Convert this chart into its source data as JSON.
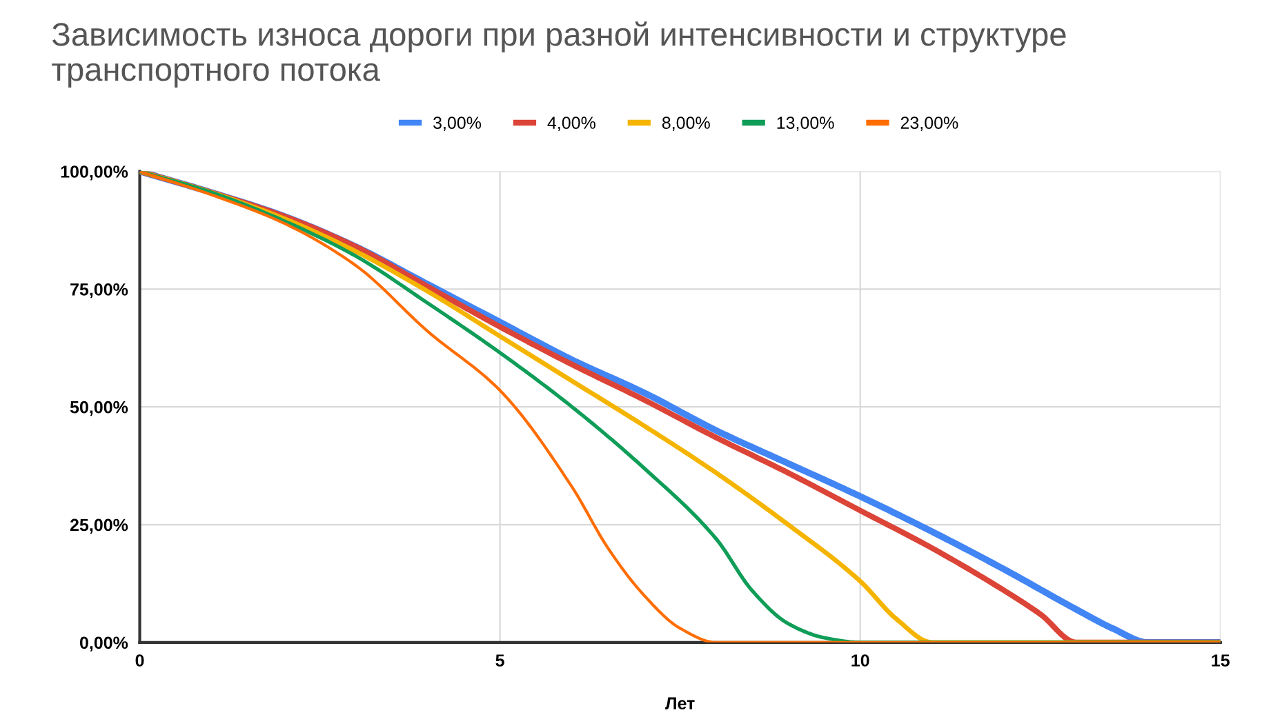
{
  "chart_data": {
    "type": "line",
    "title": "Зависимость износа дороги при разной интенсивности и структуре транспортного потока",
    "xlabel": "Лет",
    "series": [
      {
        "name": "3,00%",
        "color": "#4285f4",
        "x": [
          0,
          1,
          2,
          3,
          4,
          5,
          6,
          7,
          8,
          9,
          10,
          11,
          12,
          13,
          13.5,
          14,
          15
        ],
        "values": [
          100,
          95.5,
          90.5,
          84,
          76,
          68,
          60,
          53,
          45,
          38,
          31,
          23.5,
          15.5,
          7,
          3,
          0,
          0
        ]
      },
      {
        "name": "4,00%",
        "color": "#db4437",
        "x": [
          0,
          1,
          2,
          3,
          4,
          5,
          6,
          7,
          8,
          9,
          10,
          11,
          12,
          12.5,
          13,
          15
        ],
        "values": [
          100,
          95.5,
          90.5,
          84,
          75.5,
          67,
          59,
          51.5,
          43.5,
          36,
          28,
          20,
          11,
          6,
          0,
          0
        ]
      },
      {
        "name": "8,00%",
        "color": "#f4b400",
        "x": [
          0,
          1,
          2,
          3,
          4,
          5,
          6,
          7,
          8,
          9,
          10,
          10.5,
          11,
          15
        ],
        "values": [
          100,
          95.5,
          90,
          83,
          74.5,
          65,
          55.5,
          46,
          36,
          25,
          13,
          5,
          0,
          0
        ]
      },
      {
        "name": "13,00%",
        "color": "#0f9d58",
        "x": [
          0,
          1,
          2,
          3,
          4,
          5,
          6,
          7,
          8,
          8.5,
          9,
          9.5,
          10,
          15
        ],
        "values": [
          100,
          95.5,
          89.5,
          82,
          72,
          61.5,
          50,
          37,
          22,
          11,
          4,
          1,
          0,
          0
        ]
      },
      {
        "name": "23,00%",
        "color": "#ff6d01",
        "x": [
          0,
          1,
          2,
          3,
          4,
          5,
          6,
          6.5,
          7,
          7.5,
          8,
          15
        ],
        "values": [
          100,
          95,
          89,
          80,
          66,
          53.5,
          33,
          20,
          10,
          3,
          0,
          0
        ]
      }
    ],
    "xlim": [
      0,
      15
    ],
    "xticks": [
      0,
      5,
      10,
      15
    ],
    "ylim": [
      0,
      100
    ],
    "yticks": [
      {
        "value": 0,
        "label": "0,00%"
      },
      {
        "value": 25,
        "label": "25,00%"
      },
      {
        "value": 50,
        "label": "50,00%"
      },
      {
        "value": 75,
        "label": "75,00%"
      },
      {
        "value": 100,
        "label": "100,00%"
      }
    ],
    "grid": true,
    "legend": "top",
    "marker": "none",
    "line_style": "solid"
  }
}
